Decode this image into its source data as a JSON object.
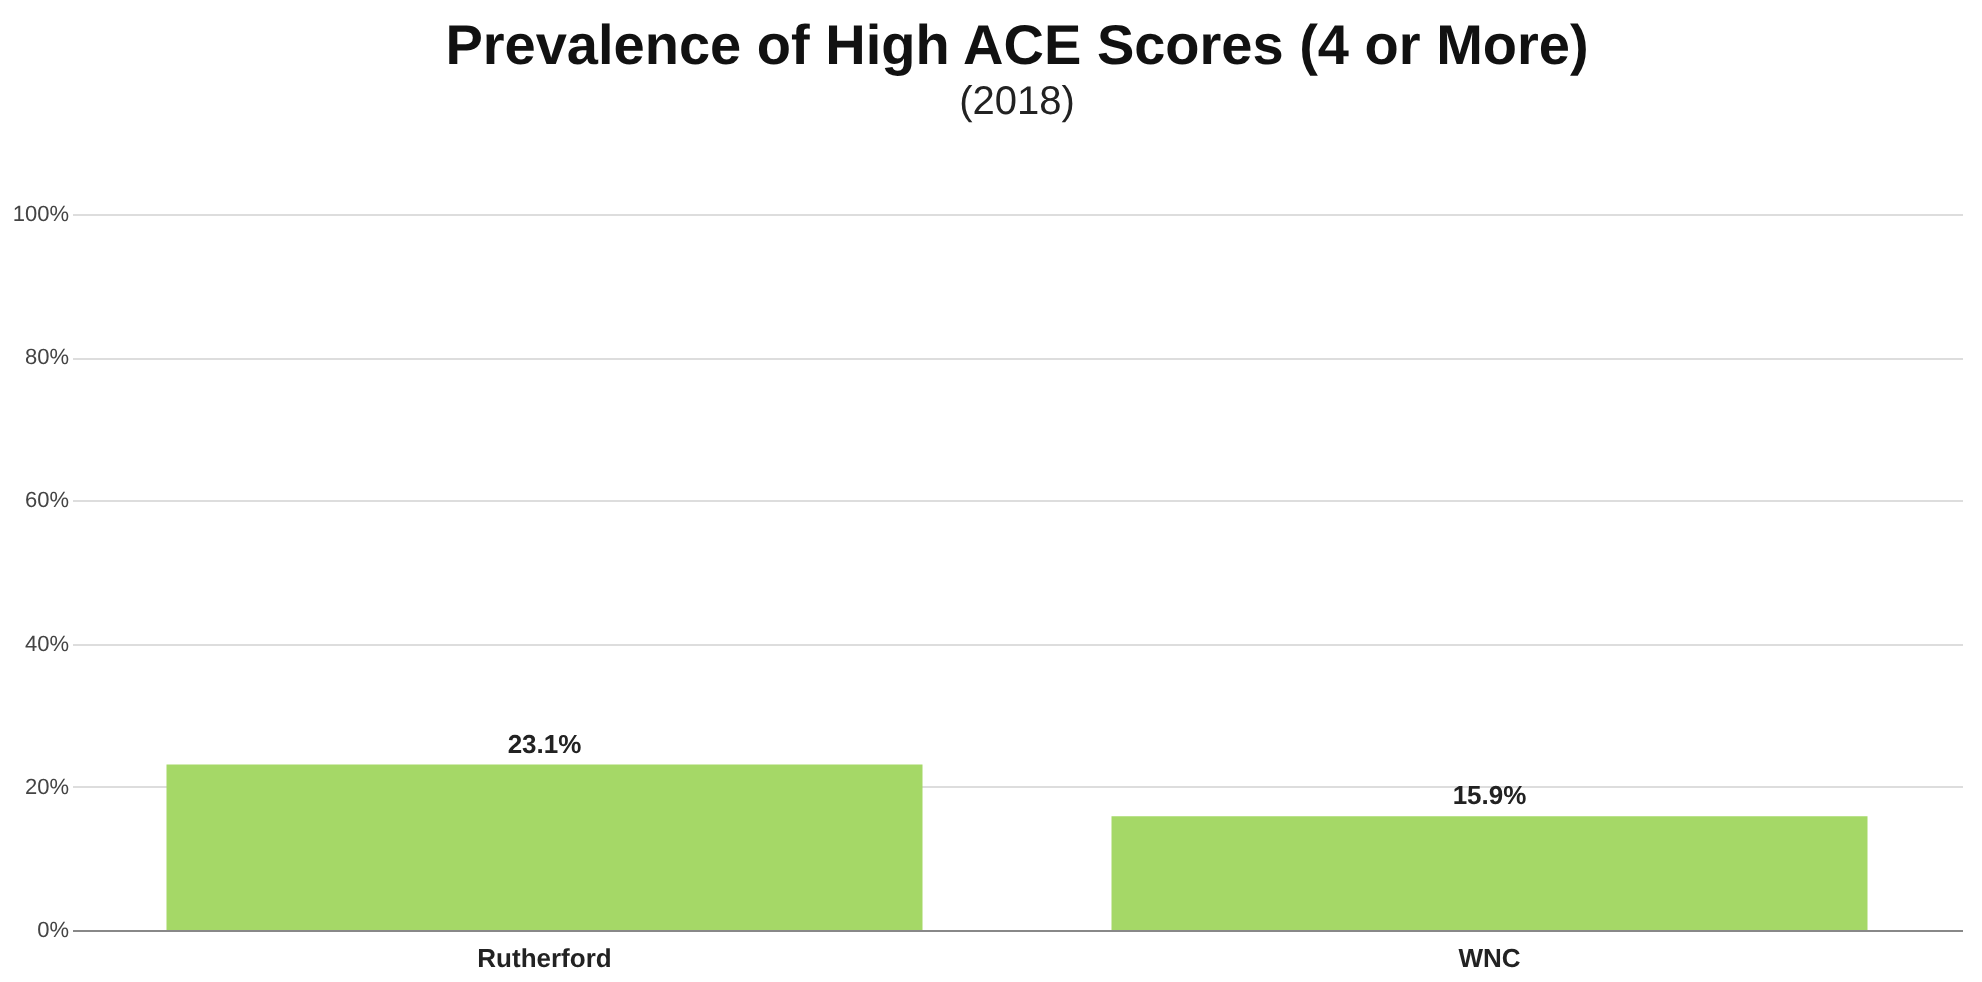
{
  "chart_data": {
    "type": "bar",
    "title": "Prevalence of High ACE Scores (4 or More)",
    "subtitle": "(2018)",
    "categories": [
      "Rutherford",
      "WNC"
    ],
    "values": [
      23.1,
      15.9
    ],
    "color": "#a5d867",
    "value_labels": [
      "23.1%",
      "15.9%"
    ],
    "ylim": [
      0,
      100
    ],
    "yticks": [
      {
        "value": 0,
        "label": "0%"
      },
      {
        "value": 20,
        "label": "20%"
      },
      {
        "value": 40,
        "label": "40%"
      },
      {
        "value": 60,
        "label": "60%"
      },
      {
        "value": 80,
        "label": "80%"
      },
      {
        "value": 100,
        "label": "100%"
      }
    ],
    "grid": "y"
  }
}
